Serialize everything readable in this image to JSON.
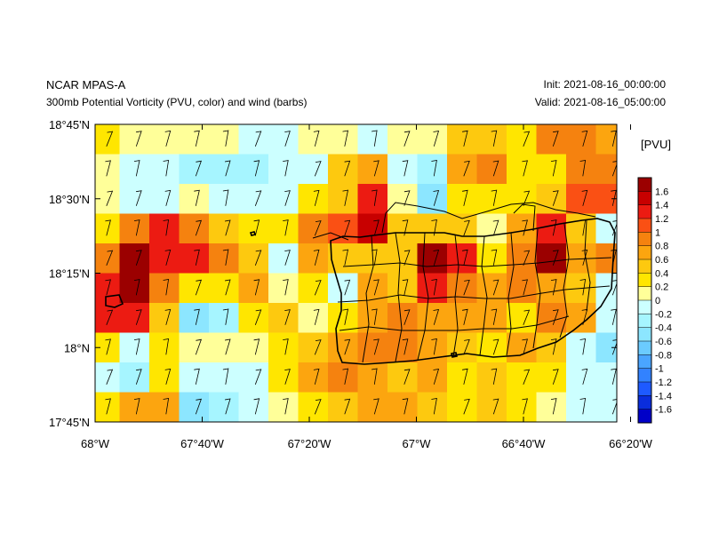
{
  "header": {
    "left_title": "NCAR MPAS-A",
    "left_subtitle": "300mb Potential Vorticity (PVU, color) and wind (barbs)",
    "init_label": "Init: 2021-08-16_00:00:00",
    "valid_label": "Valid: 2021-08-16_05:00:00"
  },
  "colorbar": {
    "units": "[PVU]",
    "levels": [
      "1.6",
      "1.4",
      "1.2",
      "1",
      "0.8",
      "0.6",
      "0.4",
      "0.2",
      "0",
      "-0.2",
      "-0.4",
      "-0.6",
      "-0.8",
      "-1",
      "-1.2",
      "-1.4",
      "-1.6"
    ],
    "colors": [
      "#9b0000",
      "#c80000",
      "#ec1b12",
      "#fa5014",
      "#f5820f",
      "#fca50f",
      "#fdc90f",
      "#ffe600",
      "#ffff99",
      "#ccffff",
      "#a6f5ff",
      "#8ce6ff",
      "#6bcbff",
      "#4aa5ff",
      "#3282ff",
      "#1e5aff",
      "#0a2ddc",
      "#0000c8"
    ]
  },
  "axes": {
    "y_ticks": [
      "18°45'N",
      "18°30'N",
      "18°15'N",
      "18°N",
      "17°45'N"
    ],
    "x_ticks": [
      "68°W",
      "67°40'W",
      "67°20'W",
      "67°W",
      "66°40'W",
      "66°20'W"
    ]
  },
  "chart_data": {
    "type": "heatmap",
    "title": "300mb Potential Vorticity (PVU, color) and wind (barbs)",
    "units": "PVU",
    "lon_range": [
      "68°W",
      "66°15'W"
    ],
    "lat_range": [
      "17°45'N",
      "18°45'N"
    ],
    "grid": {
      "nrows": 10,
      "ncols": 18,
      "row_order": "north_to_south",
      "values": [
        [
          0.3,
          0.1,
          0.1,
          0.1,
          0.1,
          -0.1,
          -0.1,
          0.1,
          0.1,
          -0.1,
          0.1,
          0.1,
          0.5,
          0.5,
          0.3,
          0.8,
          0.8,
          0.6
        ],
        [
          0.1,
          -0.1,
          -0.1,
          -0.3,
          -0.3,
          -0.3,
          -0.2,
          -0.1,
          0.5,
          0.7,
          -0.1,
          -0.3,
          0.7,
          0.9,
          0.3,
          0.3,
          0.9,
          0.8
        ],
        [
          0.1,
          -0.1,
          -0.1,
          0.1,
          -0.1,
          -0.1,
          -0.1,
          0.2,
          0.4,
          1.2,
          0.1,
          -0.5,
          0.2,
          0.2,
          0.2,
          0.4,
          1.1,
          1.1
        ],
        [
          0.2,
          0.8,
          1.2,
          0.8,
          0.4,
          0.3,
          0.2,
          0.8,
          1.1,
          1.4,
          0.5,
          0.4,
          0.5,
          0.1,
          0.7,
          1.3,
          0.4,
          -0.2
        ],
        [
          0.9,
          1.7,
          1.3,
          1.2,
          0.9,
          0.5,
          -0.2,
          0.6,
          0.4,
          0.4,
          0.5,
          1.7,
          1.3,
          0.3,
          0.9,
          1.7,
          0.6,
          0.8
        ],
        [
          1.3,
          1.7,
          0.8,
          0.2,
          0.2,
          0.6,
          0.1,
          0.2,
          -0.1,
          0.6,
          0.5,
          1.3,
          0.9,
          0.7,
          0.8,
          0.6,
          0.4,
          -0.1
        ],
        [
          1.3,
          1.3,
          0.4,
          -0.5,
          -0.3,
          0.3,
          0.4,
          0.1,
          0.2,
          0.7,
          0.9,
          0.7,
          0.6,
          0.6,
          0.3,
          0.8,
          0.7,
          -0.2
        ],
        [
          0.3,
          -0.2,
          0.2,
          0.1,
          0.1,
          0.1,
          0.3,
          0.4,
          0.6,
          0.8,
          0.8,
          0.7,
          0.4,
          0.3,
          0.6,
          0.4,
          -0.1,
          -0.5
        ],
        [
          -0.1,
          -0.3,
          0.2,
          -0.2,
          -0.1,
          -0.2,
          0.2,
          0.6,
          0.9,
          0.6,
          0.5,
          0.6,
          0.3,
          0.4,
          0.3,
          0.3,
          -0.2,
          -0.1
        ],
        [
          0.2,
          0.7,
          0.7,
          -0.5,
          -0.3,
          -0.1,
          0.1,
          0.3,
          0.5,
          0.6,
          0.7,
          0.5,
          0.3,
          0.5,
          0.3,
          0.1,
          -0.2,
          -0.1
        ]
      ]
    },
    "wind_barbs": "north-northwest flow at every grid cell",
    "grid_lines": false,
    "colorbar_range": [
      -1.6,
      1.6
    ]
  }
}
